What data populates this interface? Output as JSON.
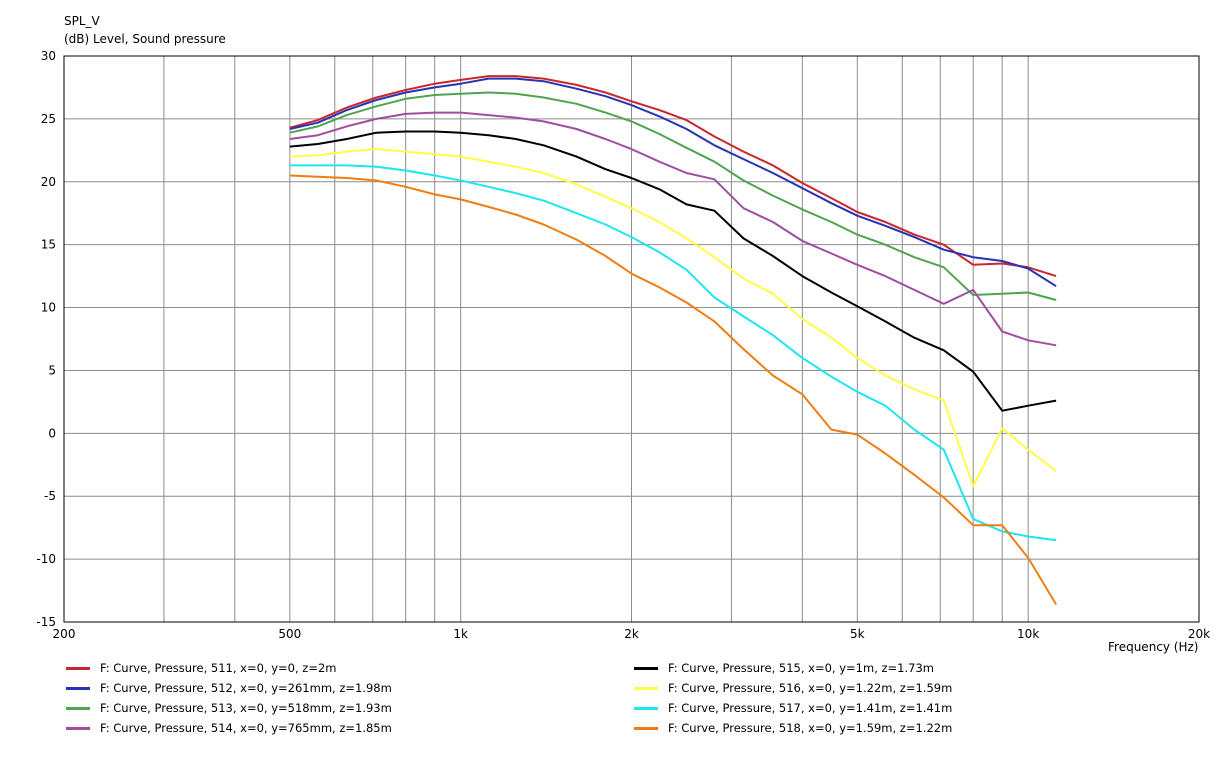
{
  "chart_data": {
    "type": "line",
    "title": "SPL_V",
    "subtitle": "(dB)  Level, Sound pressure",
    "xlabel": "Frequency  (Hz)",
    "xscale": "log",
    "xlim": [
      200,
      20000
    ],
    "ylim": [
      -15,
      30
    ],
    "grid": true,
    "legend_position": "bottom",
    "yticks": [
      30,
      25,
      20,
      15,
      10,
      5,
      0,
      -5,
      -10,
      -15
    ],
    "xtick_labels": [
      {
        "value": 200,
        "label": "200"
      },
      {
        "value": 500,
        "label": "500"
      },
      {
        "value": 1000,
        "label": "1k"
      },
      {
        "value": 2000,
        "label": "2k"
      },
      {
        "value": 5000,
        "label": "5k"
      },
      {
        "value": 10000,
        "label": "10k"
      },
      {
        "value": 20000,
        "label": "20k"
      }
    ],
    "x": [
      500,
      560,
      630,
      710,
      800,
      900,
      1000,
      1120,
      1250,
      1400,
      1600,
      1800,
      2000,
      2240,
      2500,
      2800,
      3150,
      3550,
      4000,
      4500,
      5000,
      5600,
      6300,
      7100,
      8000,
      9000,
      10000,
      11200
    ],
    "series": [
      {
        "name": "F: Curve, Pressure, 511, x=0, y=0, z=2m",
        "color": "#c8282d",
        "values": [
          24.3,
          24.9,
          25.9,
          26.7,
          27.3,
          27.8,
          28.1,
          28.4,
          28.4,
          28.2,
          27.7,
          27.1,
          26.4,
          25.7,
          24.9,
          23.6,
          22.4,
          21.3,
          19.9,
          18.7,
          17.6,
          16.8,
          15.8,
          15.0,
          13.4,
          13.5,
          13.2,
          12.5
        ]
      },
      {
        "name": "F: Curve, Pressure, 512, x=0, y=261mm, z=1.98m",
        "color": "#2832b4",
        "values": [
          24.2,
          24.7,
          25.7,
          26.5,
          27.1,
          27.5,
          27.8,
          28.2,
          28.2,
          28.0,
          27.4,
          26.8,
          26.1,
          25.2,
          24.2,
          22.9,
          21.8,
          20.7,
          19.5,
          18.3,
          17.3,
          16.5,
          15.6,
          14.6,
          14.0,
          13.7,
          13.1,
          11.7
        ]
      },
      {
        "name": "F: Curve, Pressure, 513, x=0, y=518mm, z=1.93m",
        "color": "#4ea44f",
        "values": [
          23.9,
          24.4,
          25.3,
          26.0,
          26.6,
          26.9,
          27.0,
          27.1,
          27.0,
          26.7,
          26.2,
          25.5,
          24.8,
          23.8,
          22.7,
          21.6,
          20.1,
          18.9,
          17.8,
          16.8,
          15.8,
          15.0,
          14.0,
          13.2,
          11.0,
          11.1,
          11.2,
          10.6
        ]
      },
      {
        "name": "F: Curve, Pressure, 514, x=0, y=765mm, z=1.85m",
        "color": "#a04ea0",
        "values": [
          23.4,
          23.7,
          24.4,
          25.0,
          25.4,
          25.5,
          25.5,
          25.3,
          25.1,
          24.8,
          24.2,
          23.4,
          22.6,
          21.6,
          20.7,
          20.2,
          17.9,
          16.8,
          15.3,
          14.3,
          13.4,
          12.5,
          11.4,
          10.3,
          11.4,
          8.1,
          7.4,
          7.0
        ]
      },
      {
        "name": "F: Curve, Pressure, 515, x=0, y=1m, z=1.73m",
        "color": "#000000",
        "values": [
          22.8,
          23.0,
          23.4,
          23.9,
          24.0,
          24.0,
          23.9,
          23.7,
          23.4,
          22.9,
          22.0,
          21.0,
          20.3,
          19.4,
          18.2,
          17.7,
          15.5,
          14.1,
          12.5,
          11.2,
          10.1,
          8.9,
          7.6,
          6.6,
          4.9,
          1.8,
          2.2,
          2.6
        ]
      },
      {
        "name": "F: Curve, Pressure, 516, x=0, y=1.22m, z=1.59m",
        "color": "#ffff46",
        "values": [
          22.0,
          22.1,
          22.4,
          22.6,
          22.4,
          22.2,
          22.0,
          21.6,
          21.2,
          20.7,
          19.8,
          18.8,
          17.9,
          16.8,
          15.5,
          14.0,
          12.3,
          11.1,
          9.1,
          7.6,
          6.0,
          4.6,
          3.5,
          2.6,
          -4.2,
          0.4,
          -1.3,
          -3.0
        ]
      },
      {
        "name": "F: Curve, Pressure, 517, x=0, y=1.41m, z=1.41m",
        "color": "#1ee6f0",
        "values": [
          21.3,
          21.3,
          21.3,
          21.2,
          20.9,
          20.5,
          20.1,
          19.6,
          19.1,
          18.5,
          17.5,
          16.6,
          15.6,
          14.4,
          13.0,
          10.8,
          9.3,
          7.8,
          6.0,
          4.5,
          3.3,
          2.2,
          0.3,
          -1.3,
          -6.8,
          -7.8,
          -8.2,
          -8.5
        ]
      },
      {
        "name": "F: Curve, Pressure, 518, x=0, y=1.59m, z=1.22m",
        "color": "#f07d14",
        "values": [
          20.5,
          20.4,
          20.3,
          20.1,
          19.6,
          19.0,
          18.6,
          18.0,
          17.4,
          16.6,
          15.4,
          14.1,
          12.7,
          11.6,
          10.4,
          8.9,
          6.7,
          4.6,
          3.1,
          0.3,
          -0.1,
          -1.6,
          -3.3,
          -5.1,
          -7.3,
          -7.3,
          -9.9,
          -13.6
        ]
      }
    ]
  }
}
